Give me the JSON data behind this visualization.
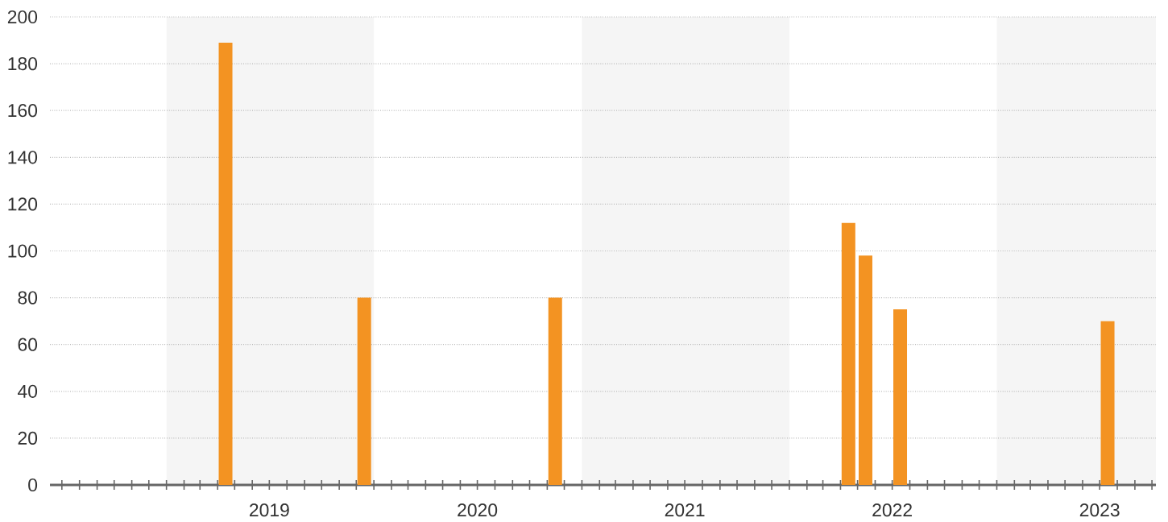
{
  "chart_data": {
    "type": "bar",
    "x": [
      "2019-04-15",
      "2019-12-15",
      "2020-11-15",
      "2022-04-15",
      "2022-05-15",
      "2022-07-15",
      "2023-07-15"
    ],
    "values": [
      189,
      80,
      80,
      112,
      98,
      75,
      70
    ],
    "color": "#f39322",
    "xlim": [
      "2018-06-10",
      "2023-10-08"
    ],
    "xticks": [
      {
        "value": "2018-07-01",
        "label": null
      },
      {
        "value": "2018-08-01",
        "label": null
      },
      {
        "value": "2018-09-01",
        "label": null
      },
      {
        "value": "2018-10-01",
        "label": null
      },
      {
        "value": "2018-11-01",
        "label": null
      },
      {
        "value": "2018-12-01",
        "label": null
      },
      {
        "value": "2019-01-01",
        "label": null
      },
      {
        "value": "2019-02-01",
        "label": null
      },
      {
        "value": "2019-03-01",
        "label": null
      },
      {
        "value": "2019-04-01",
        "label": null
      },
      {
        "value": "2019-05-01",
        "label": null
      },
      {
        "value": "2019-06-01",
        "label": null
      },
      {
        "value": "2019-07-01",
        "label": null
      },
      {
        "value": "2019-08-01",
        "label": null
      },
      {
        "value": "2019-09-01",
        "label": null
      },
      {
        "value": "2019-10-01",
        "label": null
      },
      {
        "value": "2019-11-01",
        "label": null
      },
      {
        "value": "2019-12-01",
        "label": null
      },
      {
        "value": "2020-01-01",
        "label": null
      },
      {
        "value": "2020-02-01",
        "label": null
      },
      {
        "value": "2020-03-01",
        "label": null
      },
      {
        "value": "2020-04-01",
        "label": null
      },
      {
        "value": "2020-05-01",
        "label": null
      },
      {
        "value": "2020-06-01",
        "label": null
      },
      {
        "value": "2020-07-01",
        "label": null
      },
      {
        "value": "2020-08-01",
        "label": null
      },
      {
        "value": "2020-09-01",
        "label": null
      },
      {
        "value": "2020-10-01",
        "label": null
      },
      {
        "value": "2020-11-01",
        "label": null
      },
      {
        "value": "2020-12-01",
        "label": null
      },
      {
        "value": "2021-01-01",
        "label": null
      },
      {
        "value": "2021-02-01",
        "label": null
      },
      {
        "value": "2021-03-01",
        "label": null
      },
      {
        "value": "2021-04-01",
        "label": null
      },
      {
        "value": "2021-05-01",
        "label": null
      },
      {
        "value": "2021-06-01",
        "label": null
      },
      {
        "value": "2021-07-01",
        "label": null
      },
      {
        "value": "2021-08-01",
        "label": null
      },
      {
        "value": "2021-09-01",
        "label": null
      },
      {
        "value": "2021-10-01",
        "label": null
      },
      {
        "value": "2021-11-01",
        "label": null
      },
      {
        "value": "2021-12-01",
        "label": null
      },
      {
        "value": "2022-01-01",
        "label": null
      },
      {
        "value": "2022-02-01",
        "label": null
      },
      {
        "value": "2022-03-01",
        "label": null
      },
      {
        "value": "2022-04-01",
        "label": null
      },
      {
        "value": "2022-05-01",
        "label": null
      },
      {
        "value": "2022-06-01",
        "label": null
      },
      {
        "value": "2022-07-01",
        "label": null
      },
      {
        "value": "2022-08-01",
        "label": null
      },
      {
        "value": "2022-09-01",
        "label": null
      },
      {
        "value": "2022-10-01",
        "label": null
      },
      {
        "value": "2022-11-01",
        "label": null
      },
      {
        "value": "2022-12-01",
        "label": null
      },
      {
        "value": "2023-01-01",
        "label": null
      },
      {
        "value": "2023-02-01",
        "label": null
      },
      {
        "value": "2023-03-01",
        "label": null
      },
      {
        "value": "2023-04-01",
        "label": null
      },
      {
        "value": "2023-05-01",
        "label": null
      },
      {
        "value": "2023-06-01",
        "label": null
      },
      {
        "value": "2023-07-01",
        "label": null
      },
      {
        "value": "2023-08-01",
        "label": null
      },
      {
        "value": "2023-09-01",
        "label": null
      },
      {
        "value": "2023-10-01",
        "label": null
      },
      {
        "value": "2019-07-01",
        "label": "2019"
      },
      {
        "value": "2020-07-01",
        "label": "2020"
      },
      {
        "value": "2021-07-01",
        "label": "2021"
      },
      {
        "value": "2022-07-01",
        "label": "2022"
      },
      {
        "value": "2023-07-01",
        "label": "2023"
      }
    ],
    "ylim": [
      0,
      200
    ],
    "yticks": [
      0,
      20,
      40,
      60,
      80,
      100,
      120,
      140,
      160,
      180,
      200
    ],
    "bands": [
      {
        "axis": "x",
        "from": "2019-01-01",
        "to": "2020-01-01",
        "color": "#f5f5f5"
      },
      {
        "axis": "x",
        "from": "2021-01-01",
        "to": "2022-01-01",
        "color": "#f5f5f5"
      },
      {
        "axis": "x",
        "from": "2023-01-01",
        "to": "2023-10-08",
        "color": "#f5f5f5"
      }
    ],
    "grid": "y"
  }
}
